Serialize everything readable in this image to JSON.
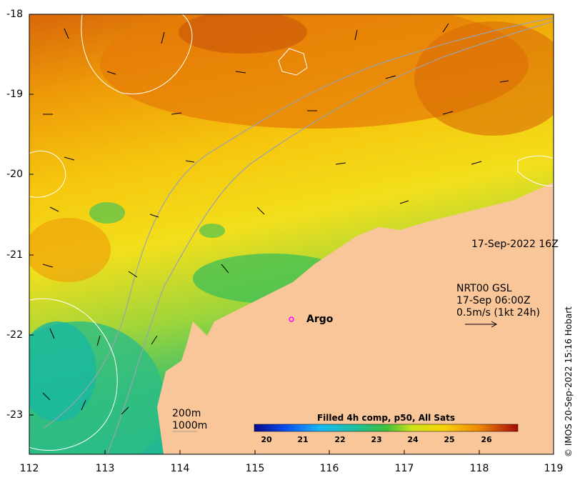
{
  "map": {
    "y_ticks": [
      "-18",
      "-19",
      "-20",
      "-21",
      "-22",
      "-23"
    ],
    "x_ticks": [
      "112",
      "113",
      "114",
      "115",
      "116",
      "117",
      "118",
      "119"
    ],
    "date_label": "17-Sep-2022 16Z",
    "current_label": {
      "line1": "NRT00 GSL",
      "line2": "17-Sep 06:00Z",
      "line3": "0.5m/s (1kt 24h)"
    },
    "argo_label": "Argo",
    "isobaths": {
      "line1": "200m",
      "line2": "1000m"
    },
    "credit": "© IMOS 20-Sep-2022 15:16 Hobart"
  },
  "colorbar": {
    "title": "Filled 4h comp, p50, All Sats",
    "ticks": [
      "20",
      "21",
      "22",
      "23",
      "24",
      "25",
      "26"
    ]
  },
  "colors": {
    "land": "#f9c69a",
    "warm": "#e87b08",
    "mid": "#f4c70c",
    "cool": "#3fc06a",
    "argo_marker": "#ff00ff"
  }
}
